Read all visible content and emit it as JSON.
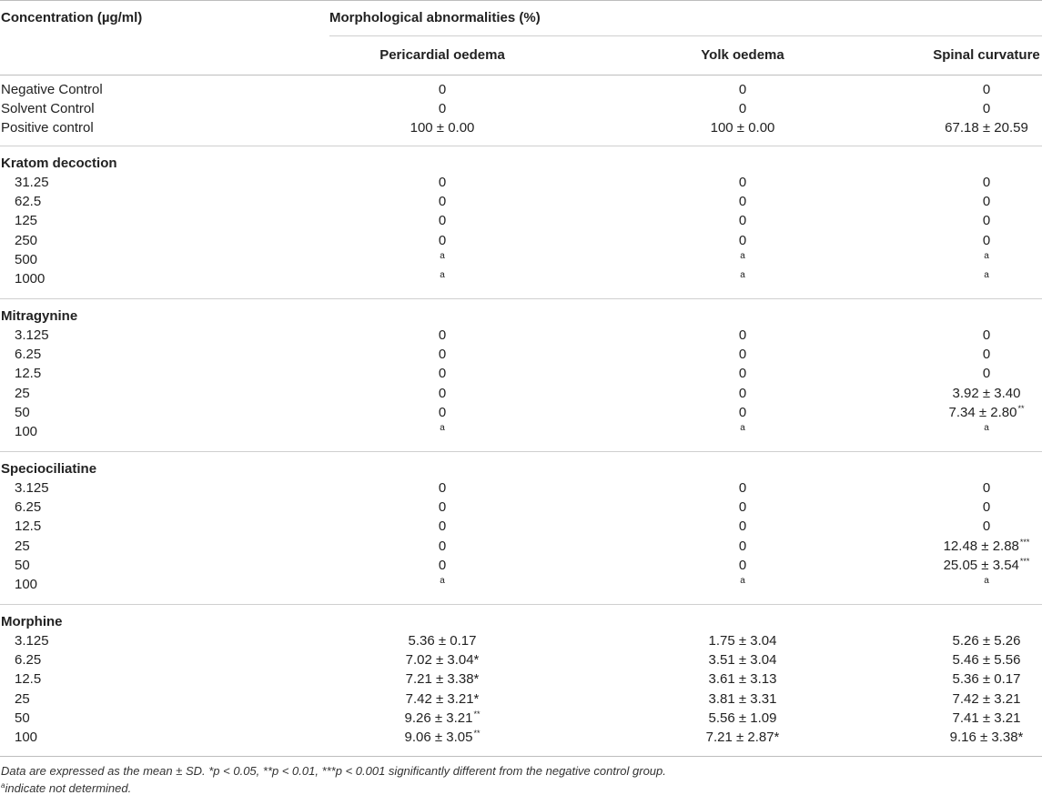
{
  "header": {
    "concentration": "Concentration (µg/ml)",
    "morph": "Morphological abnormalities (%)",
    "col_pericardial": "Pericardial oedema",
    "col_yolk": "Yolk oedema",
    "col_spinal": "Spinal curvature"
  },
  "controls": [
    {
      "label": "Negative Control",
      "c2": "0",
      "c3": "0",
      "c4": "0"
    },
    {
      "label": "Solvent Control",
      "c2": "0",
      "c3": "0",
      "c4": "0"
    },
    {
      "label": "Positive control",
      "c2": "100 ± 0.00",
      "c3": "100 ± 0.00",
      "c4": "67.18 ± 20.59"
    }
  ],
  "sections": [
    {
      "title": "Kratom decoction",
      "rows": [
        {
          "label": "31.25",
          "c2": "0",
          "c3": "0",
          "c4": "0"
        },
        {
          "label": "62.5",
          "c2": "0",
          "c3": "0",
          "c4": "0"
        },
        {
          "label": "125",
          "c2": "0",
          "c3": "0",
          "c4": "0"
        },
        {
          "label": "250",
          "c2": "0",
          "c3": "0",
          "c4": "0"
        },
        {
          "label": "500",
          "c2": "a",
          "c3": "a",
          "c4": "a"
        },
        {
          "label": "1000",
          "c2": "a",
          "c3": "a",
          "c4": "a"
        }
      ]
    },
    {
      "title": "Mitragynine",
      "rows": [
        {
          "label": "3.125",
          "c2": "0",
          "c3": "0",
          "c4": "0"
        },
        {
          "label": "6.25",
          "c2": "0",
          "c3": "0",
          "c4": "0"
        },
        {
          "label": "12.5",
          "c2": "0",
          "c3": "0",
          "c4": "0"
        },
        {
          "label": "25",
          "c2": "0",
          "c3": "0",
          "c4": "3.92 ± 3.40"
        },
        {
          "label": "50",
          "c2": "0",
          "c3": "0",
          "c4": "7.34 ± 2.80",
          "c4sup": "**"
        },
        {
          "label": "100",
          "c2": "a",
          "c3": "a",
          "c4": "a"
        }
      ]
    },
    {
      "title": "Speciociliatine",
      "rows": [
        {
          "label": "3.125",
          "c2": "0",
          "c3": "0",
          "c4": "0"
        },
        {
          "label": "6.25",
          "c2": "0",
          "c3": "0",
          "c4": "0"
        },
        {
          "label": "12.5",
          "c2": "0",
          "c3": "0",
          "c4": "0"
        },
        {
          "label": "25",
          "c2": "0",
          "c3": "0",
          "c4": "12.48 ± 2.88",
          "c4sup": "***"
        },
        {
          "label": "50",
          "c2": "0",
          "c3": "0",
          "c4": "25.05 ± 3.54",
          "c4sup": "***"
        },
        {
          "label": "100",
          "c2": "a",
          "c3": "a",
          "c4": "a"
        }
      ]
    },
    {
      "title": "Morphine",
      "rows": [
        {
          "label": "3.125",
          "c2": "5.36 ± 0.17",
          "c3": "1.75 ± 3.04",
          "c4": "5.26 ± 5.26"
        },
        {
          "label": "6.25",
          "c2": "7.02 ± 3.04*",
          "c3": "3.51 ± 3.04",
          "c4": "5.46 ± 5.56"
        },
        {
          "label": "12.5",
          "c2": "7.21 ± 3.38*",
          "c3": "3.61 ± 3.13",
          "c4": "5.36 ± 0.17"
        },
        {
          "label": "25",
          "c2": "7.42 ± 3.21*",
          "c3": "3.81 ± 3.31",
          "c4": "7.42 ± 3.21"
        },
        {
          "label": "50",
          "c2": "9.26 ± 3.21",
          "c2sup": "**",
          "c3": "5.56 ± 1.09",
          "c4": "7.41 ± 3.21"
        },
        {
          "label": "100",
          "c2": "9.06 ± 3.05",
          "c2sup": "**",
          "c3": "7.21 ± 2.87*",
          "c4": "9.16 ± 3.38*"
        }
      ]
    }
  ],
  "footnotes": {
    "line1": "Data are expressed as the mean ± SD. *p < 0.05, **p < 0.01, ***p < 0.001 significantly different from the negative control group.",
    "line2_sup": "a",
    "line2": "indicate not determined."
  }
}
